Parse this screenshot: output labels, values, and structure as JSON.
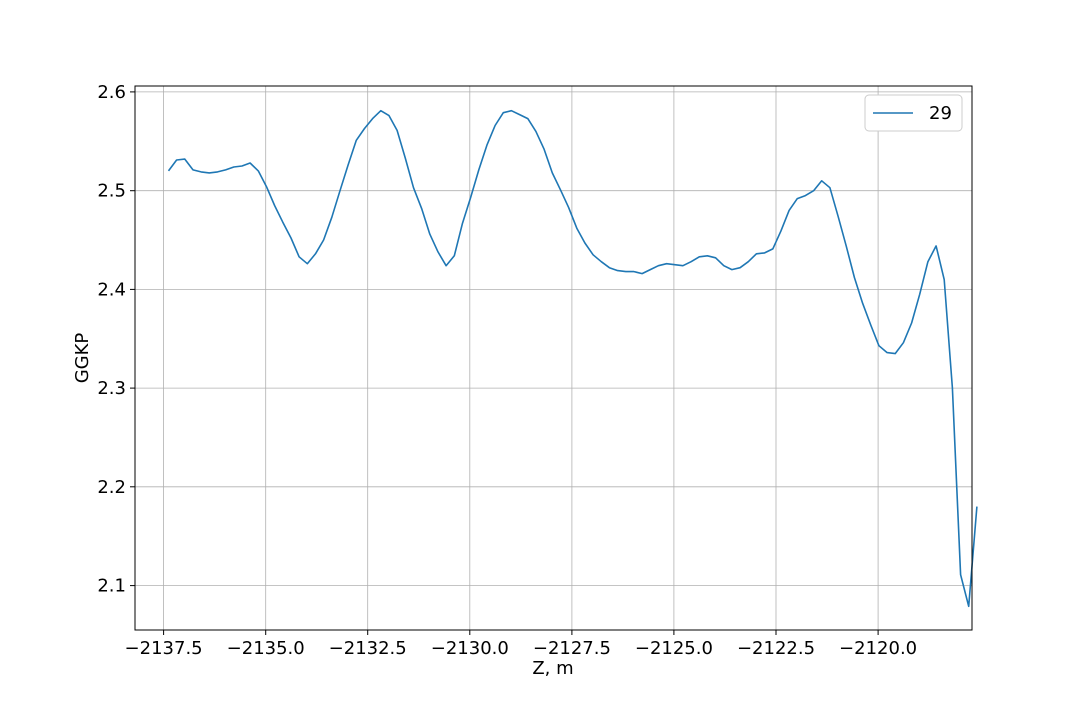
{
  "chart_data": {
    "type": "line",
    "xlabel": "Z, m",
    "ylabel": "GGKP",
    "xlim": [
      -2138.2,
      -2117.7
    ],
    "ylim": [
      2.055,
      2.606
    ],
    "xticks": [
      -2137.5,
      -2135.0,
      -2132.5,
      -2130.0,
      -2127.5,
      -2125.0,
      -2122.5,
      -2120.0
    ],
    "xtick_labels": [
      "−2137.5",
      "−2135.0",
      "−2132.5",
      "−2130.0",
      "−2127.5",
      "−2125.0",
      "−2122.5",
      "−2120.0"
    ],
    "yticks": [
      2.1,
      2.2,
      2.3,
      2.4,
      2.5,
      2.6
    ],
    "ytick_labels": [
      "2.1",
      "2.2",
      "2.3",
      "2.4",
      "2.5",
      "2.6"
    ],
    "grid": true,
    "legend_position": "top-right",
    "series": [
      {
        "name": "29",
        "color": "#1f77b4",
        "points": [
          [
            -2137.38,
            2.52
          ],
          [
            -2137.18,
            2.531
          ],
          [
            -2136.98,
            2.532
          ],
          [
            -2136.78,
            2.521
          ],
          [
            -2136.58,
            2.519
          ],
          [
            -2136.38,
            2.518
          ],
          [
            -2136.18,
            2.519
          ],
          [
            -2135.98,
            2.521
          ],
          [
            -2135.78,
            2.524
          ],
          [
            -2135.58,
            2.525
          ],
          [
            -2135.38,
            2.528
          ],
          [
            -2135.18,
            2.52
          ],
          [
            -2134.98,
            2.504
          ],
          [
            -2134.78,
            2.485
          ],
          [
            -2134.58,
            2.468
          ],
          [
            -2134.38,
            2.452
          ],
          [
            -2134.18,
            2.433
          ],
          [
            -2133.98,
            2.426
          ],
          [
            -2133.78,
            2.436
          ],
          [
            -2133.58,
            2.45
          ],
          [
            -2133.38,
            2.473
          ],
          [
            -2133.18,
            2.5
          ],
          [
            -2132.98,
            2.526
          ],
          [
            -2132.78,
            2.551
          ],
          [
            -2132.58,
            2.563
          ],
          [
            -2132.38,
            2.573
          ],
          [
            -2132.18,
            2.581
          ],
          [
            -2131.98,
            2.576
          ],
          [
            -2131.78,
            2.561
          ],
          [
            -2131.58,
            2.533
          ],
          [
            -2131.38,
            2.503
          ],
          [
            -2131.18,
            2.482
          ],
          [
            -2130.98,
            2.456
          ],
          [
            -2130.78,
            2.438
          ],
          [
            -2130.58,
            2.424
          ],
          [
            -2130.38,
            2.434
          ],
          [
            -2130.18,
            2.467
          ],
          [
            -2129.98,
            2.493
          ],
          [
            -2129.78,
            2.521
          ],
          [
            -2129.58,
            2.546
          ],
          [
            -2129.38,
            2.566
          ],
          [
            -2129.18,
            2.579
          ],
          [
            -2128.98,
            2.581
          ],
          [
            -2128.78,
            2.577
          ],
          [
            -2128.58,
            2.573
          ],
          [
            -2128.38,
            2.56
          ],
          [
            -2128.18,
            2.542
          ],
          [
            -2127.98,
            2.518
          ],
          [
            -2127.78,
            2.501
          ],
          [
            -2127.58,
            2.483
          ],
          [
            -2127.38,
            2.462
          ],
          [
            -2127.18,
            2.447
          ],
          [
            -2126.98,
            2.435
          ],
          [
            -2126.78,
            2.428
          ],
          [
            -2126.58,
            2.422
          ],
          [
            -2126.38,
            2.419
          ],
          [
            -2126.18,
            2.418
          ],
          [
            -2125.98,
            2.418
          ],
          [
            -2125.78,
            2.416
          ],
          [
            -2125.58,
            2.42
          ],
          [
            -2125.38,
            2.424
          ],
          [
            -2125.18,
            2.426
          ],
          [
            -2124.98,
            2.425
          ],
          [
            -2124.78,
            2.424
          ],
          [
            -2124.58,
            2.428
          ],
          [
            -2124.38,
            2.433
          ],
          [
            -2124.18,
            2.434
          ],
          [
            -2123.98,
            2.432
          ],
          [
            -2123.78,
            2.424
          ],
          [
            -2123.58,
            2.42
          ],
          [
            -2123.38,
            2.422
          ],
          [
            -2123.18,
            2.428
          ],
          [
            -2122.98,
            2.436
          ],
          [
            -2122.78,
            2.437
          ],
          [
            -2122.58,
            2.441
          ],
          [
            -2122.38,
            2.459
          ],
          [
            -2122.18,
            2.48
          ],
          [
            -2121.98,
            2.492
          ],
          [
            -2121.78,
            2.495
          ],
          [
            -2121.58,
            2.5
          ],
          [
            -2121.38,
            2.51
          ],
          [
            -2121.18,
            2.503
          ],
          [
            -2120.98,
            2.474
          ],
          [
            -2120.78,
            2.444
          ],
          [
            -2120.58,
            2.412
          ],
          [
            -2120.38,
            2.386
          ],
          [
            -2120.18,
            2.364
          ],
          [
            -2119.98,
            2.343
          ],
          [
            -2119.78,
            2.336
          ],
          [
            -2119.58,
            2.335
          ],
          [
            -2119.38,
            2.346
          ],
          [
            -2119.18,
            2.366
          ],
          [
            -2118.98,
            2.395
          ],
          [
            -2118.78,
            2.428
          ],
          [
            -2118.58,
            2.444
          ],
          [
            -2118.38,
            2.41
          ],
          [
            -2118.18,
            2.3
          ],
          [
            -2117.98,
            2.111
          ],
          [
            -2117.78,
            2.079
          ],
          [
            -2117.58,
            2.18
          ]
        ]
      }
    ]
  }
}
